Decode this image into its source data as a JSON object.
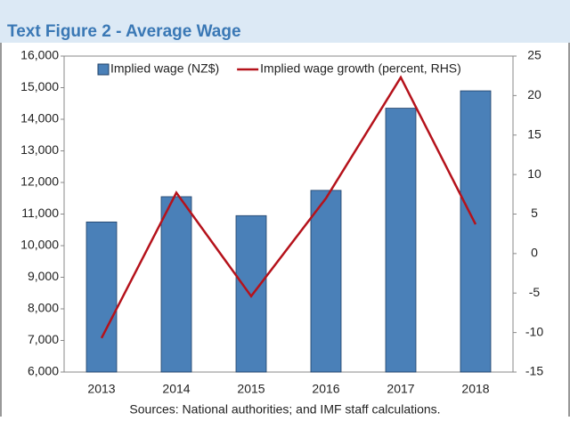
{
  "chart_data": {
    "type": "bar_line",
    "title": "Text Figure 2 - Average Wage",
    "source": "Sources: National authorities; and IMF staff calculations.",
    "categories": [
      "2013",
      "2014",
      "2015",
      "2016",
      "2017",
      "2018"
    ],
    "series": [
      {
        "name": "Implied wage (NZ$)",
        "type": "bar",
        "color": "#4a80b8",
        "values": [
          10750,
          11550,
          10950,
          11750,
          14350,
          14900
        ]
      },
      {
        "name": "Implied wage growth (percent, RHS)",
        "type": "line",
        "axis": "y2",
        "color": "#b5121b",
        "values": [
          -10.7,
          7.7,
          -5.4,
          7.0,
          22.3,
          3.7
        ]
      }
    ],
    "ylim": [
      6000,
      16000
    ],
    "yticks": [
      {
        "value": 6000,
        "label": "6,000"
      },
      {
        "value": 7000,
        "label": "7,000"
      },
      {
        "value": 8000,
        "label": "8,000"
      },
      {
        "value": 9000,
        "label": "9,000"
      },
      {
        "value": 10000,
        "label": "10,000"
      },
      {
        "value": 11000,
        "label": "11,000"
      },
      {
        "value": 12000,
        "label": "12,000"
      },
      {
        "value": 13000,
        "label": "13,000"
      },
      {
        "value": 14000,
        "label": "14,000"
      },
      {
        "value": 15000,
        "label": "15,000"
      },
      {
        "value": 16000,
        "label": "16,000"
      }
    ],
    "y2lim": [
      -15,
      25
    ],
    "y2ticks": [
      -15,
      -10,
      -5,
      0,
      5,
      10,
      15,
      20,
      25
    ],
    "grid": false,
    "legend": "top"
  }
}
